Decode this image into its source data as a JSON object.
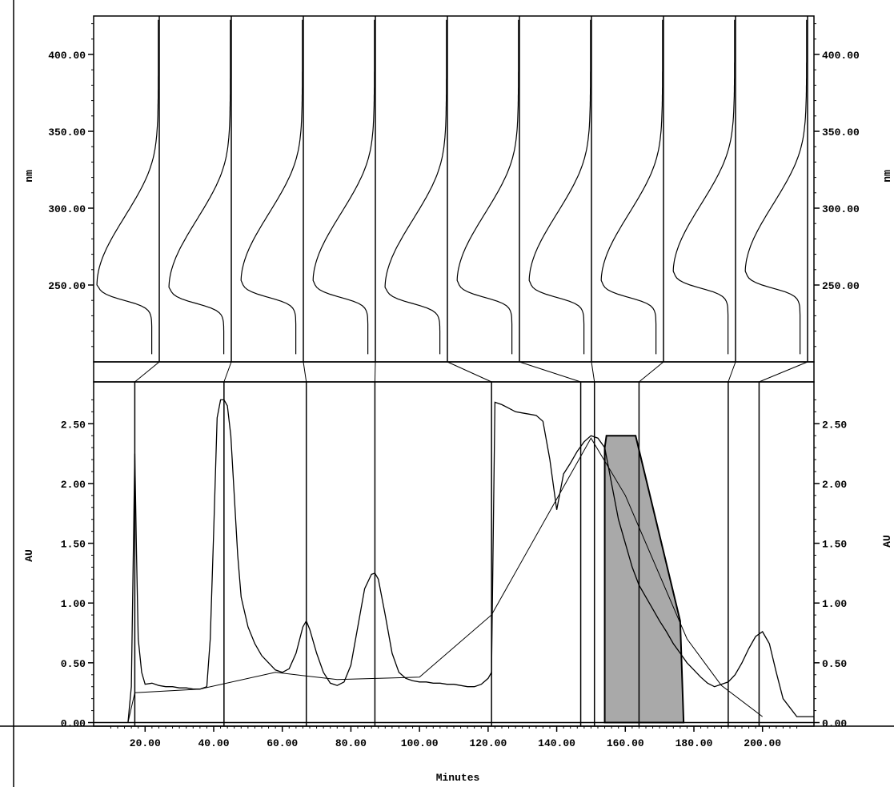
{
  "chart_data": [
    {
      "type": "line",
      "panel": "spectra",
      "ylabel": "nm",
      "ylim": [
        200,
        425
      ],
      "y_ticks": [
        250.0,
        300.0,
        350.0,
        400.0
      ],
      "y_tick_labels": [
        "250.00",
        "300.00",
        "350.00",
        "400.00"
      ],
      "grid": false,
      "spectra": [
        {
          "max_nm": 250,
          "time": 17
        },
        {
          "max_nm": 248,
          "time": 43
        },
        {
          "max_nm": 252,
          "time": 67
        },
        {
          "max_nm": 252,
          "time": 87
        },
        {
          "max_nm": 248,
          "time": 121
        },
        {
          "max_nm": 252,
          "time": 147
        },
        {
          "max_nm": 252,
          "time": 151
        },
        {
          "max_nm": 252,
          "time": 164
        },
        {
          "max_nm": 258,
          "time": 190
        },
        {
          "max_nm": 258,
          "time": 199
        }
      ]
    },
    {
      "type": "line",
      "panel": "chromatogram",
      "xlabel": "Minutes",
      "ylabel": "AU",
      "xlim": [
        5,
        215
      ],
      "ylim": [
        -0.03,
        2.85
      ],
      "x_ticks": [
        20,
        40,
        60,
        80,
        100,
        120,
        140,
        160,
        180,
        200
      ],
      "x_tick_labels": [
        "20.00",
        "40.00",
        "60.00",
        "80.00",
        "100.00",
        "120.00",
        "140.00",
        "160.00",
        "180.00",
        "200.00"
      ],
      "y_ticks": [
        0.0,
        0.5,
        1.0,
        1.5,
        2.0,
        2.5
      ],
      "y_tick_labels": [
        "0.00",
        "0.50",
        "1.00",
        "1.50",
        "2.00",
        "2.50"
      ],
      "grid": false,
      "series": [
        {
          "x": [
            15,
            16,
            17,
            17.5,
            18,
            19,
            20,
            22,
            24,
            26,
            28,
            30,
            32,
            34,
            36,
            38,
            39,
            40,
            41,
            42,
            43,
            44,
            45,
            46,
            47,
            48,
            50,
            52,
            54,
            56,
            58,
            60,
            62,
            64,
            66,
            67,
            68,
            70,
            72,
            74,
            76,
            78,
            80,
            82,
            84,
            86,
            87,
            88,
            90,
            92,
            94,
            96,
            98,
            100,
            102,
            104,
            106,
            108,
            110,
            112,
            114,
            116,
            118,
            120,
            121,
            122,
            123,
            124,
            126,
            128,
            130,
            132,
            134,
            136,
            138,
            140,
            142,
            144,
            146,
            148,
            150,
            152,
            154,
            156,
            158,
            160,
            162,
            164,
            166,
            168,
            170,
            172,
            174,
            176,
            178,
            180,
            182,
            184,
            186,
            188,
            190,
            192,
            194,
            196,
            198,
            200,
            202,
            204,
            206,
            210,
            215
          ],
          "y": [
            0.0,
            0.3,
            2.25,
            1.4,
            0.7,
            0.42,
            0.32,
            0.33,
            0.31,
            0.3,
            0.3,
            0.29,
            0.29,
            0.28,
            0.28,
            0.3,
            0.7,
            1.6,
            2.55,
            2.7,
            2.7,
            2.65,
            2.4,
            1.9,
            1.4,
            1.05,
            0.8,
            0.66,
            0.56,
            0.5,
            0.44,
            0.42,
            0.45,
            0.58,
            0.8,
            0.85,
            0.78,
            0.58,
            0.42,
            0.33,
            0.31,
            0.34,
            0.48,
            0.8,
            1.12,
            1.24,
            1.25,
            1.2,
            0.9,
            0.58,
            0.42,
            0.37,
            0.35,
            0.34,
            0.34,
            0.33,
            0.33,
            0.32,
            0.32,
            0.31,
            0.3,
            0.3,
            0.32,
            0.37,
            0.42,
            2.68,
            2.67,
            2.66,
            2.63,
            2.6,
            2.59,
            2.58,
            2.57,
            2.52,
            2.2,
            1.78,
            2.08,
            2.17,
            2.27,
            2.35,
            2.4,
            2.38,
            2.3,
            2.0,
            1.7,
            1.5,
            1.3,
            1.15,
            1.05,
            0.95,
            0.85,
            0.76,
            0.66,
            0.58,
            0.5,
            0.44,
            0.38,
            0.33,
            0.3,
            0.32,
            0.34,
            0.4,
            0.5,
            0.62,
            0.72,
            0.76,
            0.66,
            0.42,
            0.2,
            0.05,
            0.05
          ]
        }
      ],
      "shaded_region": {
        "x_start": 154,
        "x_end": 176,
        "top_au": 2.4,
        "color": "#a9a9a9"
      },
      "marker_times": [
        17,
        43,
        67,
        87,
        121,
        147,
        151,
        164,
        190,
        199
      ],
      "integration_line_points": [
        [
          15,
          0
        ],
        [
          17,
          0.25
        ],
        [
          36,
          0.28
        ],
        [
          58,
          0.42
        ],
        [
          76,
          0.36
        ],
        [
          100,
          0.38
        ],
        [
          121,
          0.9
        ],
        [
          150,
          2.38
        ],
        [
          160,
          1.9
        ],
        [
          178,
          0.7
        ],
        [
          188,
          0.31
        ],
        [
          200,
          0.05
        ]
      ]
    }
  ]
}
